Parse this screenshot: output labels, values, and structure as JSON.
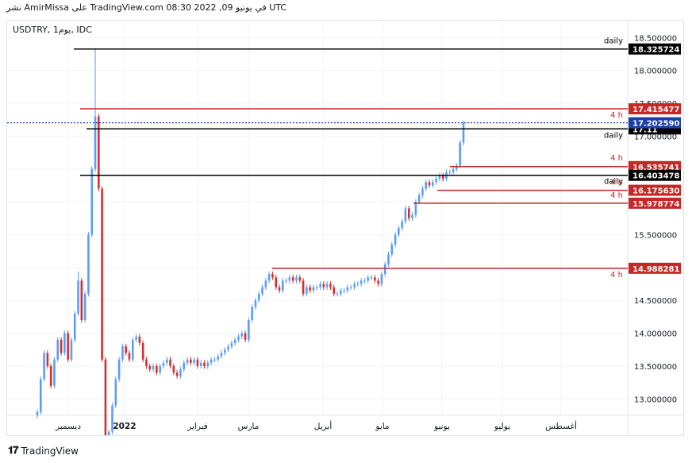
{
  "header": {
    "text": "نشر AmirMissa على TradingView.com في يونيو 09, 2022 08:30 UTC"
  },
  "symbol_label": "USDTRY, 1يوم, IDC",
  "footer": {
    "brand": "TradingView"
  },
  "colors": {
    "up": "#2962ff",
    "up_light": "#5b9cf6",
    "down": "#d32f2f",
    "res_red": "#c62828",
    "black": "#000000",
    "current": "#1e3fa6"
  },
  "chart_data": {
    "type": "candlestick",
    "title": "USDTRY, 1يوم, IDC",
    "x_ticks": [
      "ديسمبر",
      "2022",
      "فبراير",
      "مارس",
      "أبريل",
      "مايو",
      "يونيو",
      "يوليو",
      "أغسطس"
    ],
    "y_ticks": [
      "18.500000",
      "18.000000",
      "17.500000",
      "17.000000",
      "16.500000",
      "16.000000",
      "15.500000",
      "15.000000",
      "14.500000",
      "14.000000",
      "13.500000",
      "13.000000"
    ],
    "y_tick_values": [
      18.5,
      18.0,
      17.5,
      17.0,
      16.5,
      16.0,
      15.5,
      15.0,
      14.5,
      14.0,
      13.5,
      13.0
    ],
    "ylim": [
      12.75,
      18.6
    ],
    "current_price": {
      "value": 17.20259,
      "label": "17.202590"
    },
    "levels": [
      {
        "value": 18.325724,
        "label": "18.325724",
        "timeframe": "daily",
        "color": "black"
      },
      {
        "value": 17.415477,
        "label": "17.415477",
        "timeframe": "4 h",
        "color": "red"
      },
      {
        "value": 17.11,
        "label": "17.11",
        "timeframe": "daily",
        "color": "black"
      },
      {
        "value": 16.535741,
        "label": "16.535741",
        "timeframe": "4 h",
        "color": "red"
      },
      {
        "value": 16.403478,
        "label": "16.403478",
        "timeframe": "daily",
        "color": "black"
      },
      {
        "value": 16.17563,
        "label": "16.175630",
        "timeframe": "4 h",
        "color": "red"
      },
      {
        "value": 15.978774,
        "label": "15.978774",
        "timeframe": "4 h",
        "color": "red"
      },
      {
        "value": 14.988281,
        "label": "14.988281",
        "timeframe": "4 h",
        "color": "red"
      }
    ],
    "closes": [
      12.8,
      13.3,
      13.7,
      13.5,
      13.2,
      13.6,
      13.9,
      13.7,
      14.0,
      13.6,
      13.9,
      14.3,
      14.8,
      14.2,
      14.6,
      15.5,
      16.5,
      17.3,
      16.2,
      13.6,
      11.9,
      12.5,
      12.9,
      13.3,
      13.6,
      13.8,
      13.7,
      13.6,
      13.9,
      13.95,
      13.85,
      13.6,
      13.5,
      13.45,
      13.5,
      13.4,
      13.5,
      13.55,
      13.6,
      13.5,
      13.4,
      13.35,
      13.45,
      13.55,
      13.6,
      13.55,
      13.6,
      13.5,
      13.55,
      13.5,
      13.55,
      13.6,
      13.6,
      13.65,
      13.7,
      13.75,
      13.8,
      13.85,
      13.9,
      13.95,
      14.0,
      13.9,
      14.2,
      14.4,
      14.5,
      14.6,
      14.7,
      14.8,
      14.9,
      14.85,
      14.7,
      14.65,
      14.8,
      14.8,
      14.85,
      14.8,
      14.85,
      14.8,
      14.6,
      14.7,
      14.65,
      14.7,
      14.7,
      14.75,
      14.7,
      14.75,
      14.7,
      14.6,
      14.6,
      14.65,
      14.65,
      14.7,
      14.7,
      14.75,
      14.75,
      14.8,
      14.8,
      14.85,
      14.85,
      14.8,
      14.75,
      14.9,
      15.05,
      15.2,
      15.35,
      15.5,
      15.6,
      15.7,
      15.9,
      15.75,
      15.8,
      16.0,
      16.1,
      16.2,
      16.3,
      16.25,
      16.3,
      16.35,
      16.4,
      16.35,
      16.45,
      16.45,
      16.5,
      16.55,
      16.9,
      17.2
    ]
  }
}
